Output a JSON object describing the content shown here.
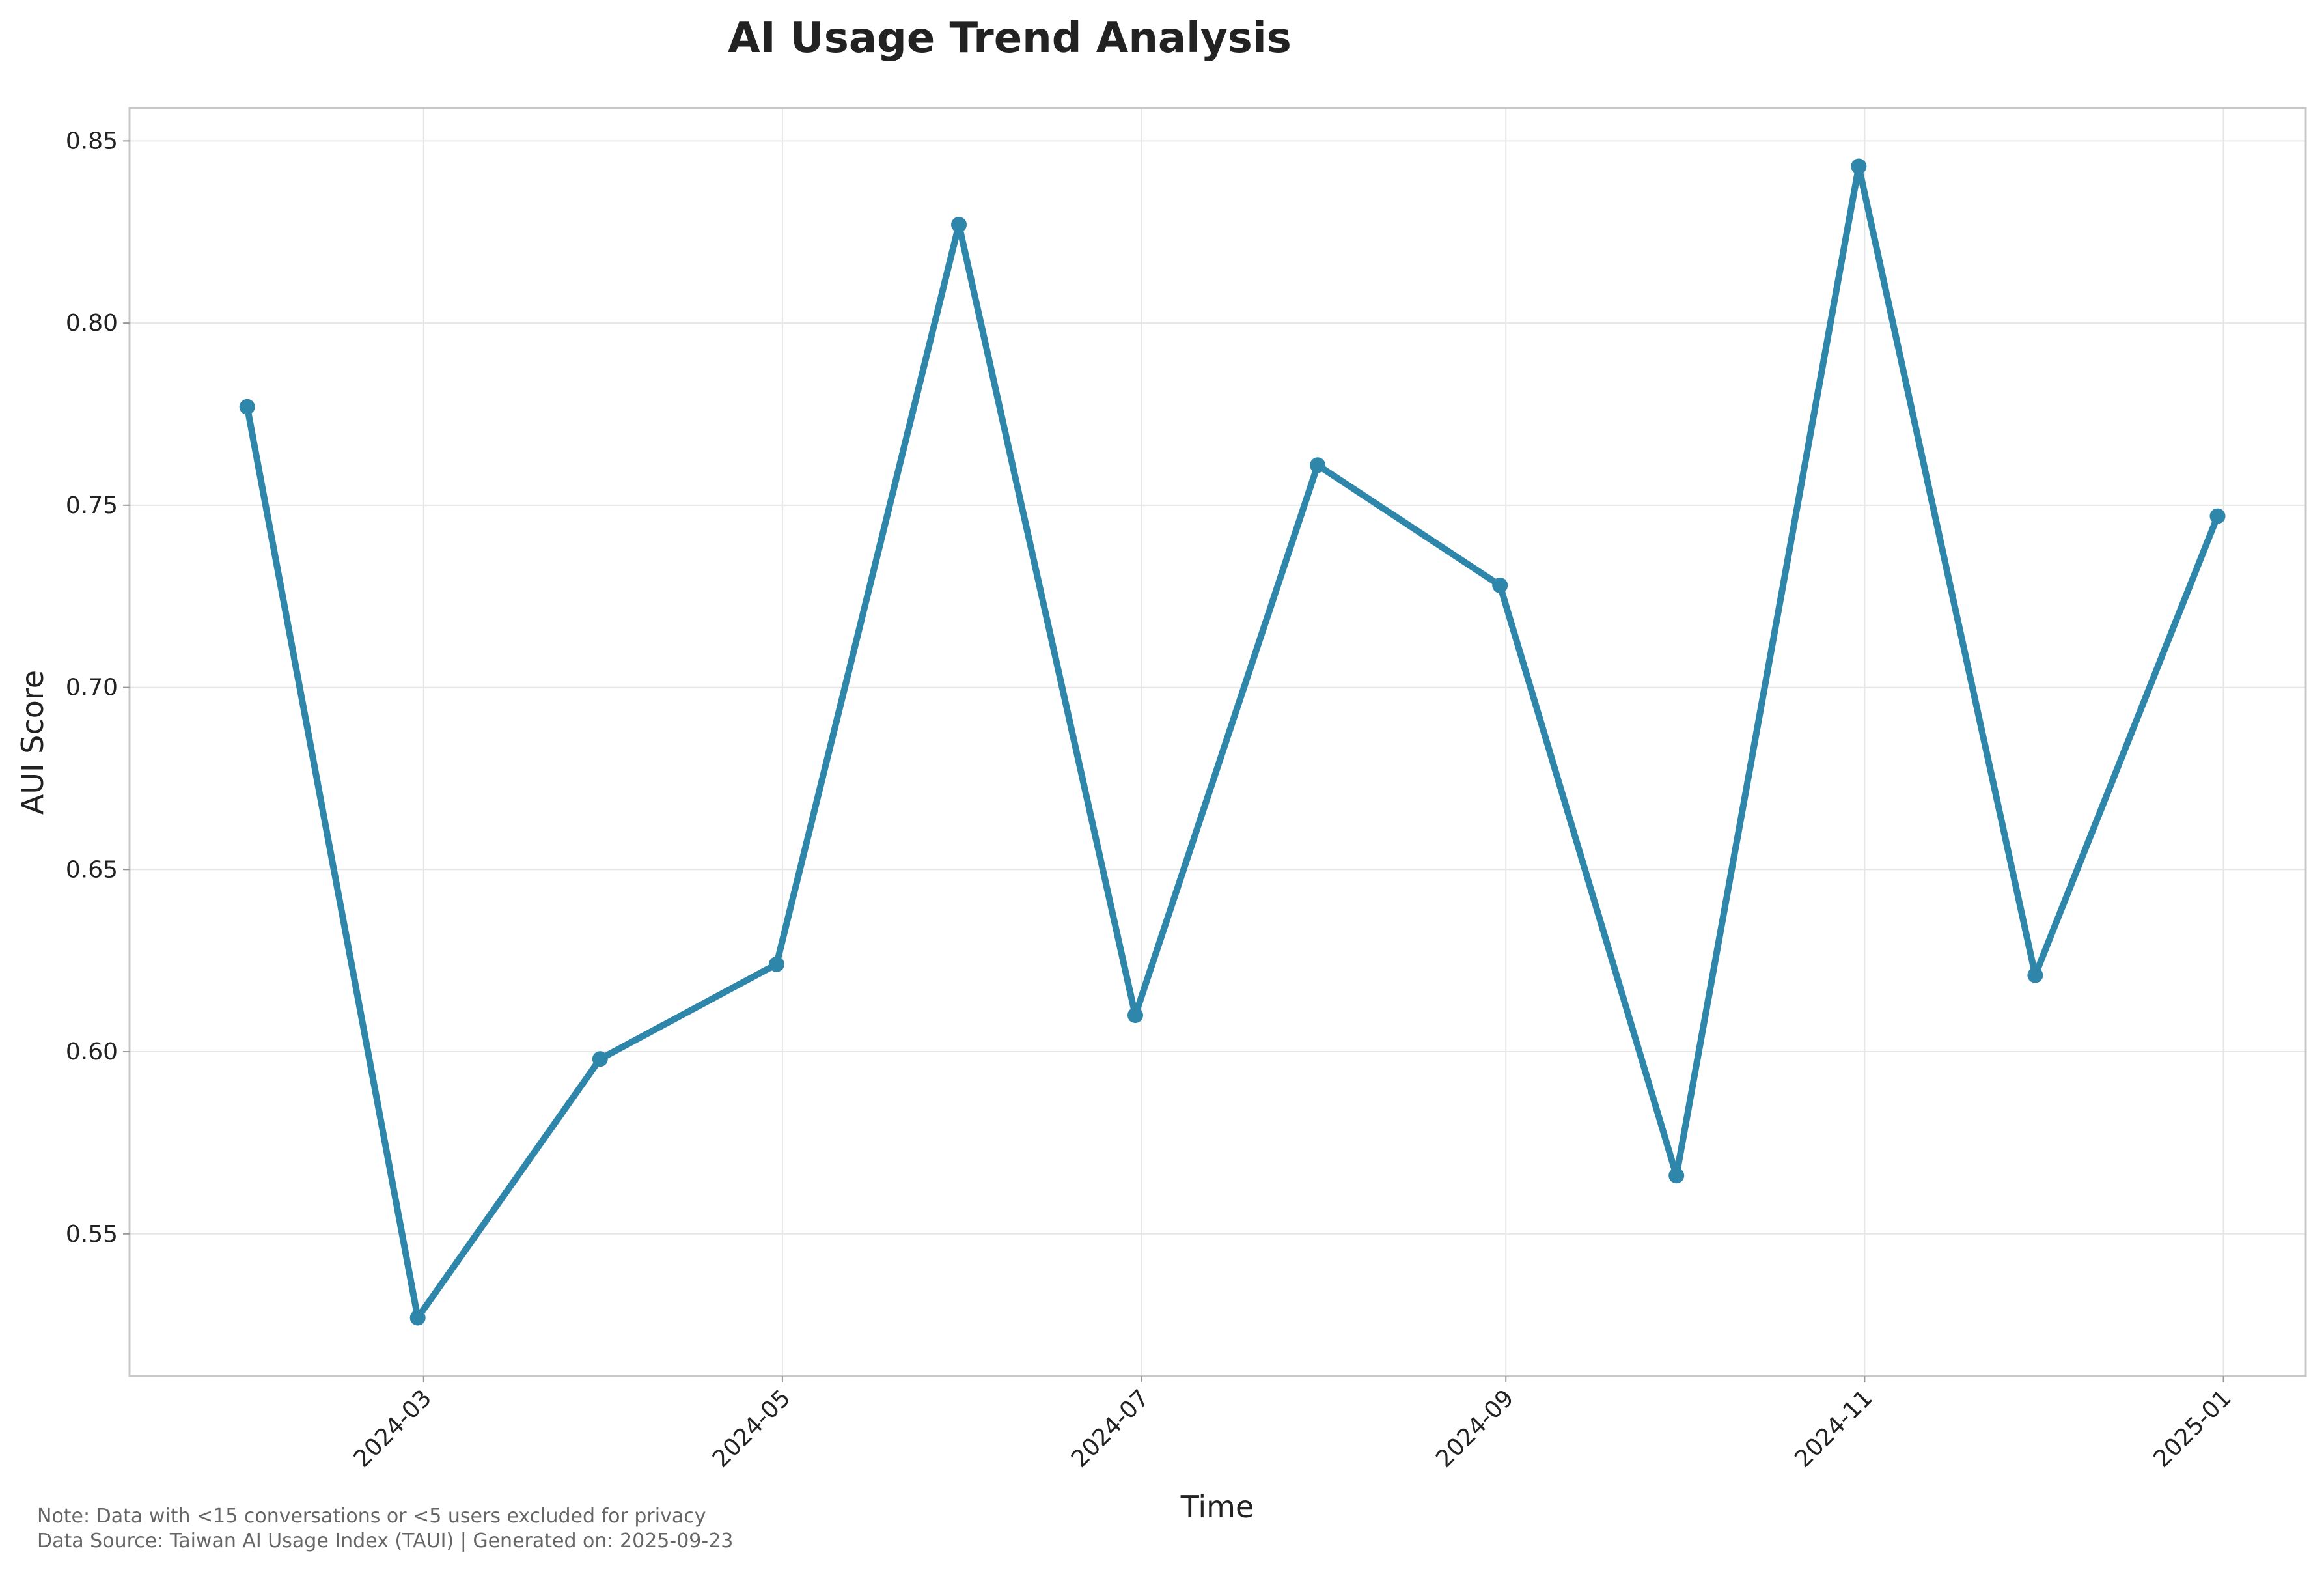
{
  "chart_data": {
    "type": "line",
    "title": "AI Usage Trend Analysis",
    "xlabel": "Time",
    "ylabel": "AUI Score",
    "x": [
      "2024-01-31",
      "2024-02-29",
      "2024-03-31",
      "2024-04-30",
      "2024-05-31",
      "2024-06-30",
      "2024-07-31",
      "2024-08-31",
      "2024-09-30",
      "2024-10-31",
      "2024-11-30",
      "2024-12-31"
    ],
    "xlim": [
      "2024-01-11",
      "2025-01-15"
    ],
    "x_ticks": [
      {
        "date": "2024-03-01",
        "label": "2024-03"
      },
      {
        "date": "2024-05-01",
        "label": "2024-05"
      },
      {
        "date": "2024-07-01",
        "label": "2024-07"
      },
      {
        "date": "2024-09-01",
        "label": "2024-09"
      },
      {
        "date": "2024-11-01",
        "label": "2024-11"
      },
      {
        "date": "2025-01-01",
        "label": "2025-01"
      }
    ],
    "ylim": [
      0.511,
      0.859
    ],
    "y_ticks": [
      {
        "value": 0.55,
        "label": "0.55"
      },
      {
        "value": 0.6,
        "label": "0.60"
      },
      {
        "value": 0.65,
        "label": "0.65"
      },
      {
        "value": 0.7,
        "label": "0.70"
      },
      {
        "value": 0.75,
        "label": "0.75"
      },
      {
        "value": 0.8,
        "label": "0.80"
      },
      {
        "value": 0.85,
        "label": "0.85"
      }
    ],
    "series": [
      {
        "values": [
          0.777,
          0.527,
          0.598,
          0.624,
          0.827,
          0.61,
          0.761,
          0.728,
          0.566,
          0.843,
          0.621,
          0.747
        ],
        "color": "#2e86ab"
      }
    ],
    "grid": true,
    "legend": "none"
  },
  "footer": {
    "note": "Note: Data with <15 conversations or <5 users excluded for privacy",
    "source": "Data Source: Taiwan AI Usage Index (TAUI) | Generated on: 2025-09-23"
  }
}
